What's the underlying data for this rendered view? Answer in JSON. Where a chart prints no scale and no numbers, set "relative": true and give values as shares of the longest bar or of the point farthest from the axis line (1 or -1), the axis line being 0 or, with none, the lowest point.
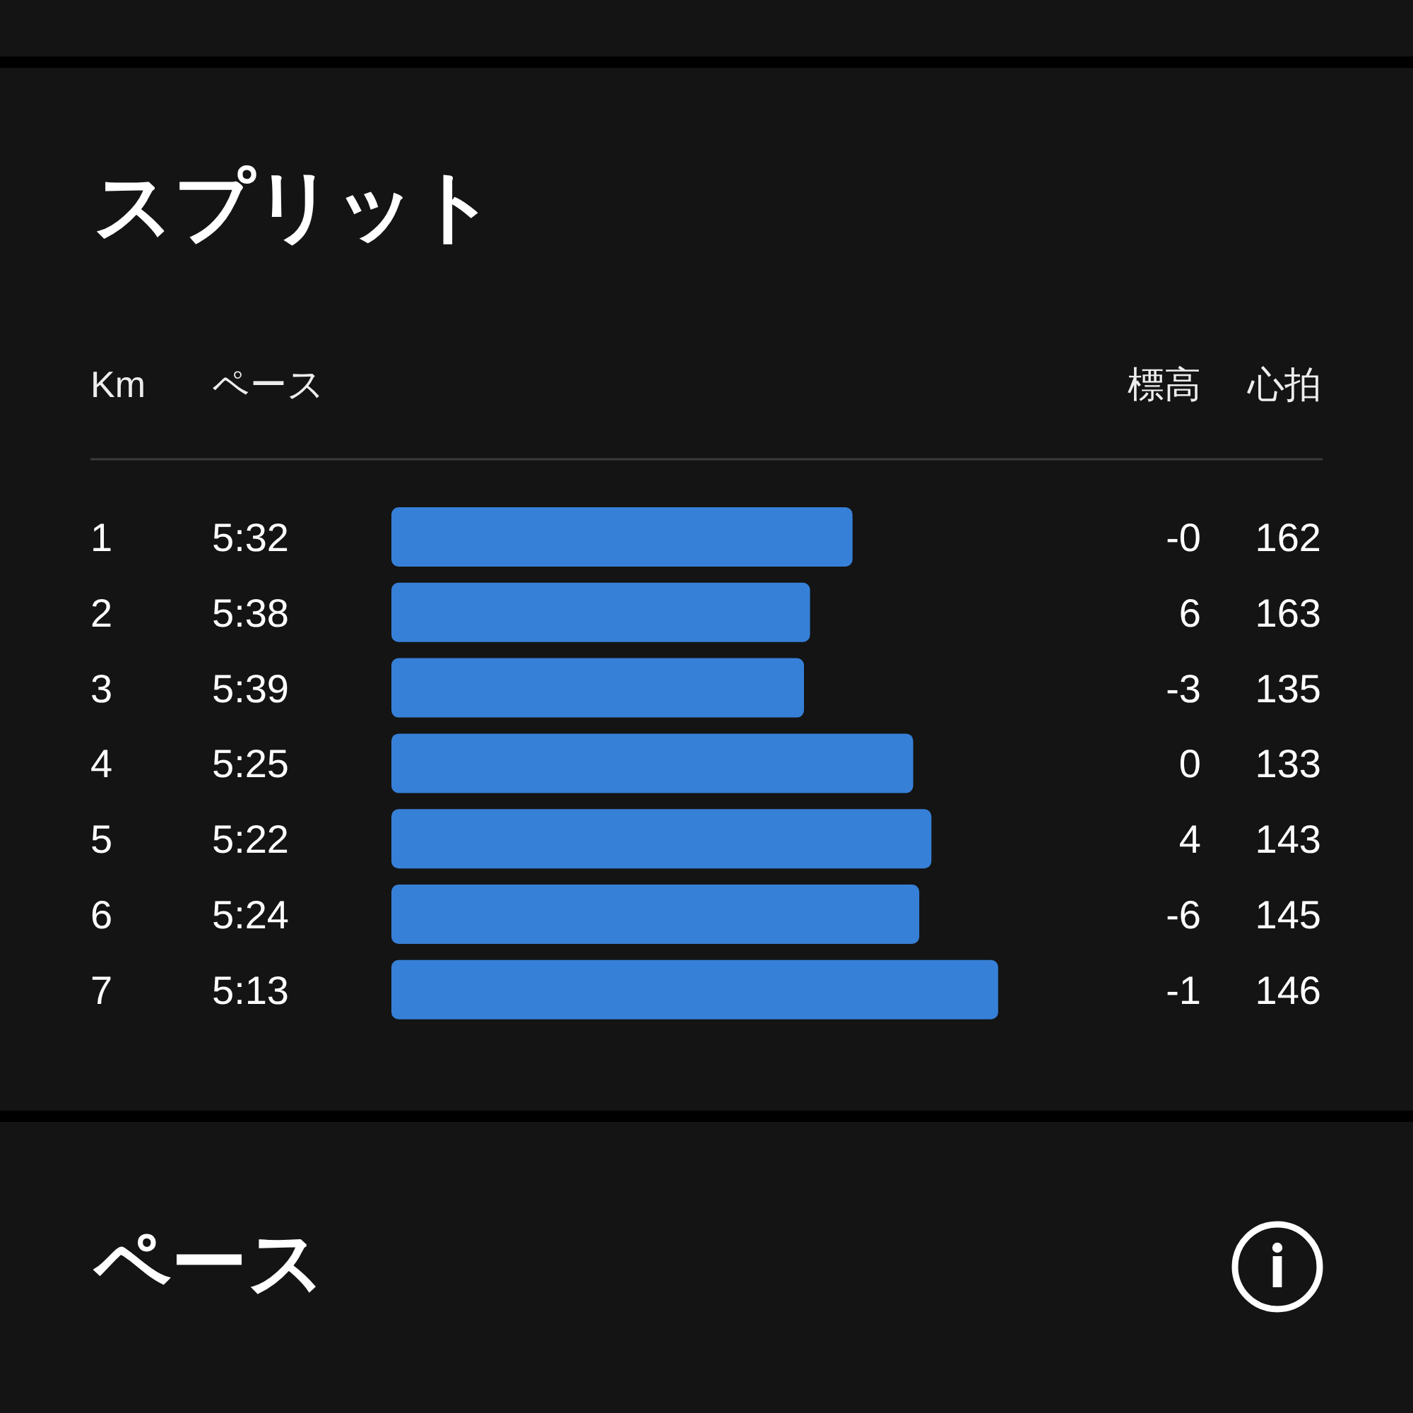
{
  "chart_data": [
    {
      "type": "bar",
      "orientation": "horizontal",
      "relative": true,
      "title": "スプリット",
      "ylabel": "Km",
      "categories": [
        "1",
        "2",
        "3",
        "4",
        "5",
        "6",
        "7"
      ],
      "values": [
        0.76,
        0.69,
        0.68,
        0.86,
        0.89,
        0.87,
        1
      ],
      "color": "#3780d8"
    },
    {
      "type": "other",
      "title": "ペース",
      "annotations": [
        "5:32",
        "5:38",
        "5:39",
        "5:25",
        "5:22",
        "5:24",
        "5:13"
      ]
    },
    {
      "type": "other",
      "title": "標高",
      "annotations": [
        "-0",
        "6",
        "-3",
        "0",
        "4",
        "-6",
        "-1"
      ]
    },
    {
      "type": "other",
      "title": "心拍",
      "annotations": [
        "162",
        "163",
        "135",
        "133",
        "143",
        "145",
        "146"
      ]
    },
    {
      "type": "other",
      "title": "ペース"
    }
  ]
}
